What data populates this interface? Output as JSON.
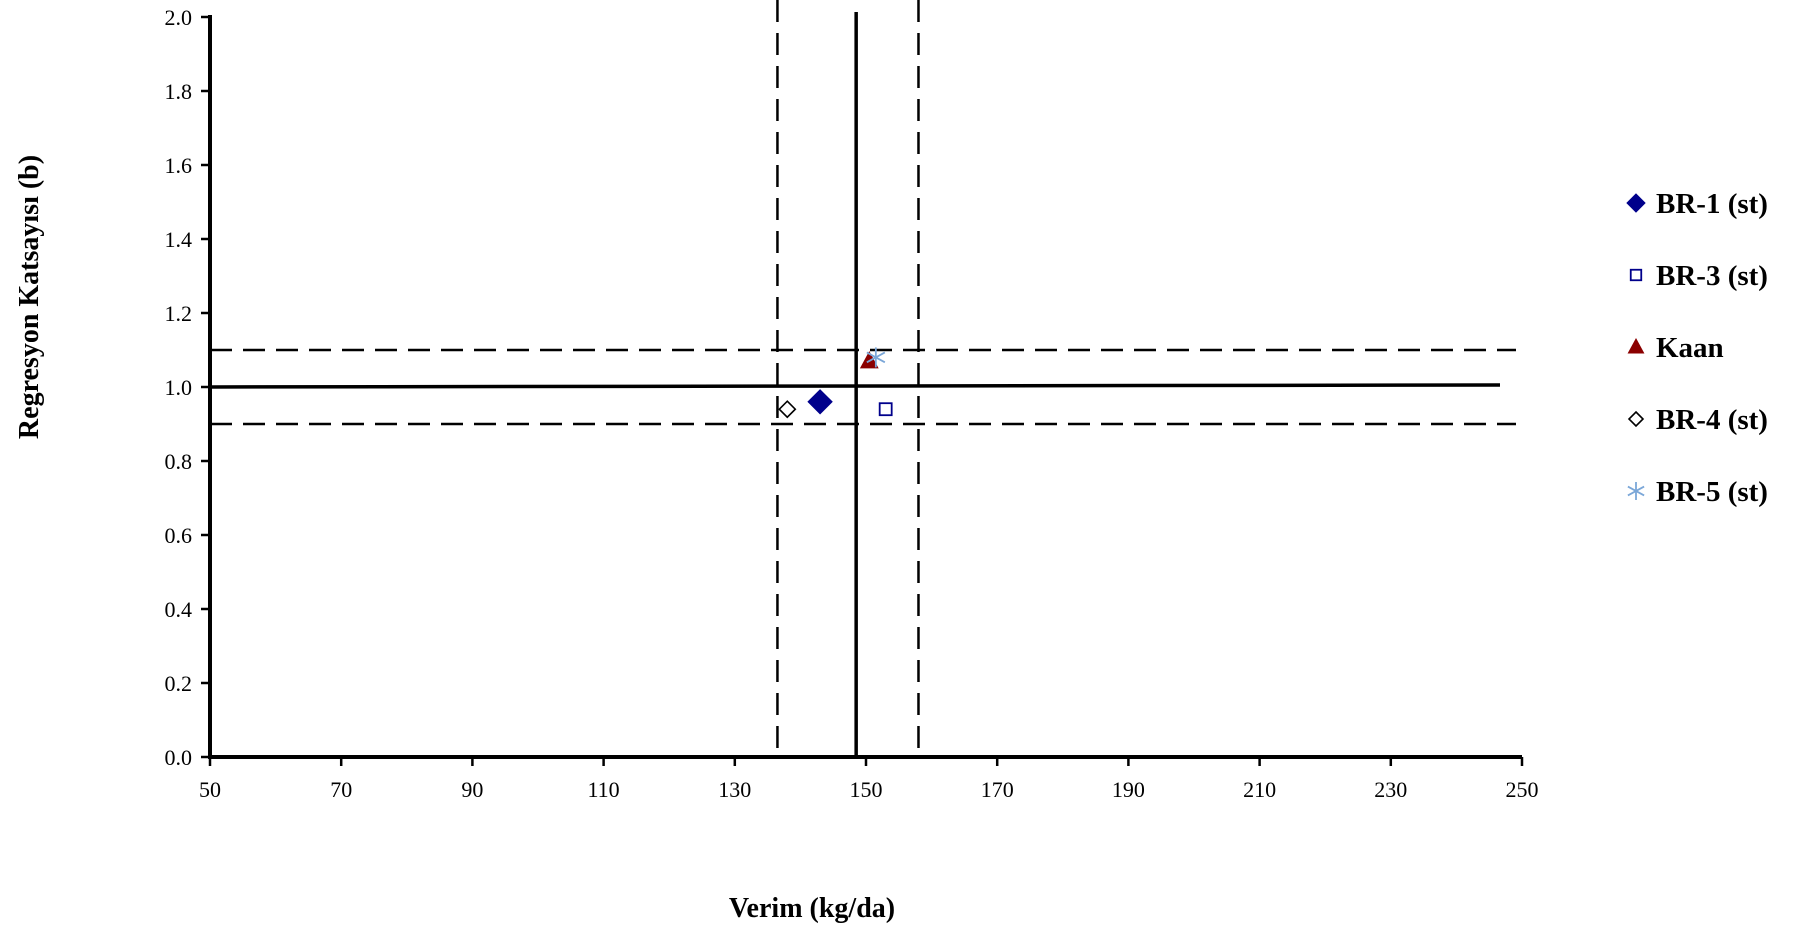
{
  "chart_data": {
    "type": "scatter",
    "xlabel": "Verim (kg/da)",
    "ylabel": "Regresyon Katsayısı (b)",
    "xlim": [
      50,
      250
    ],
    "ylim": [
      0,
      2.0
    ],
    "xticks": [
      "50",
      "70",
      "90",
      "110",
      "130",
      "150",
      "170",
      "190",
      "210",
      "230",
      "250"
    ],
    "yticks": [
      "0.0",
      "0.2",
      "0.4",
      "0.6",
      "0.8",
      "1.0",
      "1.2",
      "1.4",
      "1.6",
      "1.8",
      "2.0"
    ],
    "legend_position": "right",
    "series": [
      {
        "name": "BR-1 (st)",
        "marker": "diamond-filled",
        "color": "#00008B",
        "x": [
          143
        ],
        "y": [
          0.96
        ]
      },
      {
        "name": "BR-3 (st)",
        "marker": "square-open",
        "color": "#00008B",
        "x": [
          153
        ],
        "y": [
          0.94
        ]
      },
      {
        "name": "Kaan",
        "marker": "triangle-filled",
        "color": "#8B0000",
        "x": [
          150.5
        ],
        "y": [
          1.07
        ]
      },
      {
        "name": "BR-4 (st)",
        "marker": "diamond-open",
        "color": "#000000",
        "x": [
          138
        ],
        "y": [
          0.94
        ]
      },
      {
        "name": "BR-5 (st)",
        "marker": "star",
        "color": "#7BA7D8",
        "x": [
          151.5
        ],
        "y": [
          1.08
        ]
      }
    ],
    "reference_lines": {
      "x_mean": 148.5,
      "x_dashed": [
        136.5,
        158
      ],
      "y_mean": 1.0,
      "y_dashed": [
        0.9,
        1.1
      ]
    }
  }
}
